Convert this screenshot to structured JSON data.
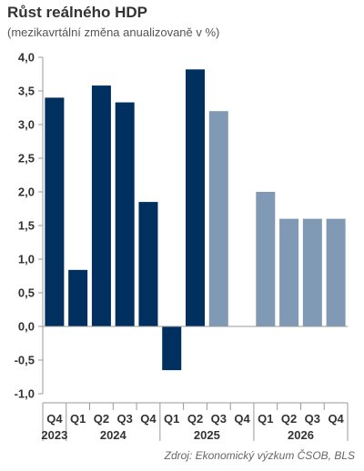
{
  "chart_data": {
    "type": "bar",
    "title": "Růst reálného HDP",
    "subtitle": "(mezikavrtální změna anualizovaně v %)",
    "source": "Zdroj: Ekonomický výzkum ČSOB, BLS",
    "categories": [
      "Q4",
      "Q1",
      "Q2",
      "Q3",
      "Q4",
      "Q1",
      "Q2",
      "Q3",
      "Q4",
      "Q1",
      "Q2",
      "Q3",
      "Q4"
    ],
    "years": [
      {
        "label": "2023",
        "from": 0,
        "to": 0
      },
      {
        "label": "2024",
        "from": 1,
        "to": 4
      },
      {
        "label": "2025",
        "from": 5,
        "to": 8
      },
      {
        "label": "2026",
        "from": 9,
        "to": 12
      }
    ],
    "series": [
      {
        "values": [
          3.4,
          0.84,
          3.58,
          3.33,
          1.85,
          -0.65,
          3.82,
          3.2,
          0.0,
          2.0,
          1.6,
          1.6,
          1.6
        ],
        "kind": [
          "actual",
          "actual",
          "actual",
          "actual",
          "actual",
          "actual",
          "actual",
          "forecast",
          "forecast",
          "forecast",
          "forecast",
          "forecast",
          "forecast"
        ]
      }
    ],
    "colors": {
      "actual": "#00305f",
      "forecast": "#8099b4"
    },
    "ylim": [
      -1.0,
      4.0
    ],
    "yticks": [
      4.0,
      3.5,
      3.0,
      2.5,
      2.0,
      1.5,
      1.0,
      0.5,
      0.0,
      -0.5,
      -1.0
    ],
    "ytick_labels": [
      "4,0",
      "3,5",
      "3,0",
      "2,5",
      "2,0",
      "1,5",
      "1,0",
      "0,5",
      "0,0",
      "-0,5",
      "-1,0"
    ],
    "grid": false,
    "legend": "none"
  }
}
